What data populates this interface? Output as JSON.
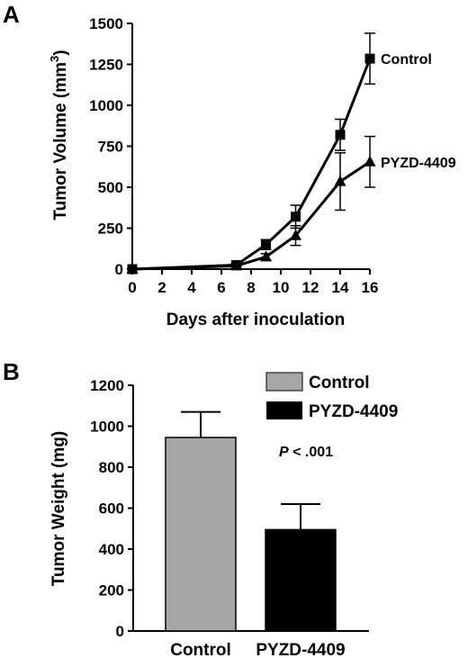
{
  "chart_data": [
    {
      "panel": "A",
      "type": "line",
      "xlabel": "Days after inoculation",
      "ylabel": "Tumor Volume (mm",
      "ylabel_sup": "3",
      "ylabel_end": ")",
      "xlim": [
        0,
        16
      ],
      "ylim": [
        0,
        1500
      ],
      "xticks": [
        0,
        2,
        4,
        6,
        8,
        10,
        12,
        14,
        16
      ],
      "yticks": [
        0,
        250,
        500,
        750,
        1000,
        1250,
        1500
      ],
      "grid": false,
      "series": [
        {
          "name": "Control",
          "marker": "square",
          "x": [
            0,
            7,
            9,
            11,
            14,
            16
          ],
          "y": [
            0,
            25,
            150,
            320,
            820,
            1285
          ],
          "err": [
            0,
            10,
            30,
            70,
            95,
            155
          ]
        },
        {
          "name": "PYZD-4409",
          "marker": "triangle",
          "x": [
            0,
            7,
            9,
            11,
            14,
            16
          ],
          "y": [
            0,
            20,
            75,
            205,
            535,
            655
          ],
          "err": [
            0,
            8,
            20,
            60,
            175,
            155
          ]
        }
      ]
    },
    {
      "panel": "B",
      "type": "bar",
      "ylabel": "Tumor Weight (mg)",
      "categories": [
        "Control",
        "PYZD-4409"
      ],
      "values": [
        945,
        495
      ],
      "errors": [
        125,
        125
      ],
      "colors": [
        "#a6a6a6",
        "#000000"
      ],
      "ylim": [
        0,
        1200
      ],
      "yticks": [
        0,
        200,
        400,
        600,
        800,
        1000,
        1200
      ],
      "legend": [
        "Control",
        "PYZD-4409"
      ],
      "legend_position": "top-right",
      "annotation_p": "P",
      "annotation_rest": " < .001"
    }
  ]
}
